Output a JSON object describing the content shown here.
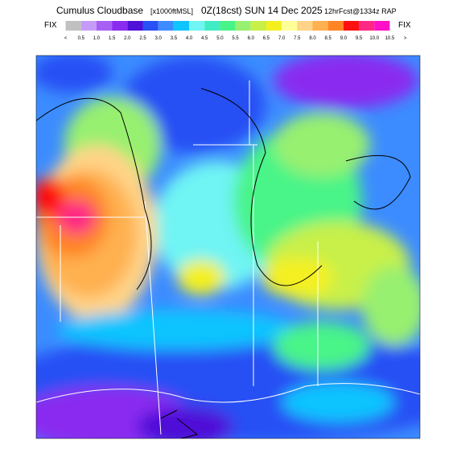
{
  "header": {
    "title": "Cumulus Cloudbase",
    "units": "[x1000ftMSL]",
    "valid": "0Z(18cst) SUN 14 Dec 2025",
    "forecast": "12hrFcst@1334z RAP"
  },
  "legend": {
    "left_label": "FIX",
    "right_label": "FIX",
    "labels": [
      "<",
      "0.5",
      "1.0",
      "1.5",
      "2.0",
      "2.5",
      "3.0",
      "3.5",
      "4.0",
      "4.5",
      "5.0",
      "5.5",
      "6.0",
      "6.5",
      "7.0",
      "7.5",
      "8.0",
      "8.5",
      "9.0",
      "9.5",
      "10.0",
      "10.5",
      ">"
    ],
    "colors": [
      "#c0c0c0",
      "#c49cf8",
      "#a860f4",
      "#8a2cf0",
      "#5010d8",
      "#2850f4",
      "#3c8cff",
      "#10c4ff",
      "#70f4f4",
      "#40ecc4",
      "#48f488",
      "#98f070",
      "#c8f048",
      "#f4f020",
      "#ffff98",
      "#ffd488",
      "#ffb050",
      "#ff8424",
      "#ff1010",
      "#ff2884",
      "#ff10c8"
    ]
  }
}
